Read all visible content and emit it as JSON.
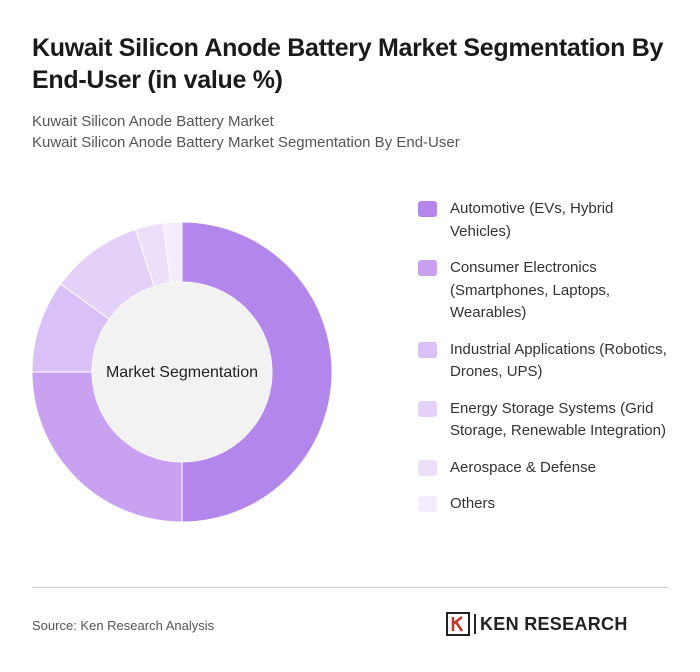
{
  "chart_data": {
    "type": "donut",
    "title": "Kuwait Silicon Anode Battery Market Segmentation By End-User (in value %)",
    "subtitle": [
      "Kuwait Silicon Anode Battery Market",
      "Kuwait Silicon Anode Battery Market Segmentation By End-User"
    ],
    "center_label": "Market Segmentation",
    "categories": [
      "Automotive (EVs, Hybrid Vehicles)",
      "Consumer Electronics (Smartphones, Laptops, Wearables)",
      "Industrial Applications (Robotics, Drones, UPS)",
      "Energy Storage Systems (Grid Storage, Renewable Integration)",
      "Aerospace & Defense",
      "Others"
    ],
    "values": [
      50,
      25,
      10,
      10,
      3,
      2
    ],
    "colors": [
      "#b386ec",
      "#c8a2f1",
      "#d9c0f6",
      "#e3d1f8",
      "#ebdffa",
      "#f3ecfc"
    ],
    "source": "Source: Ken Research Analysis",
    "logo": "KEN RESEARCH"
  }
}
